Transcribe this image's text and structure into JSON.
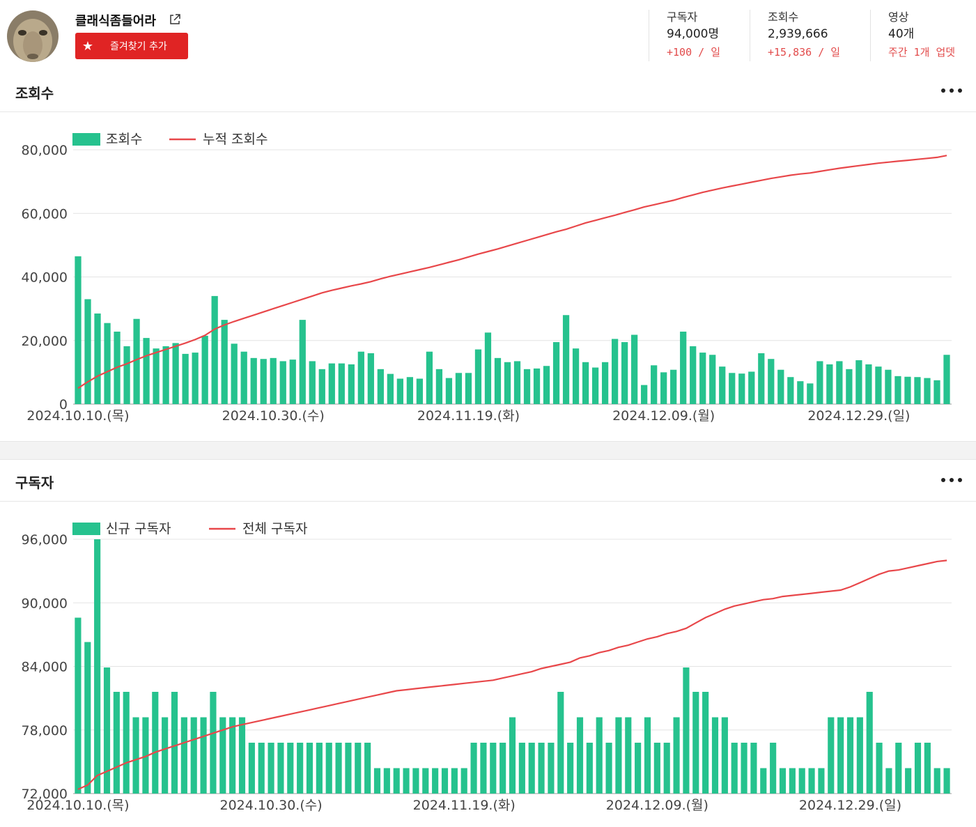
{
  "channel": {
    "name": "클래식좀들어라",
    "favorite_label": "즐겨찾기 추가"
  },
  "stats": [
    {
      "label": "구독자",
      "value": "94,000명",
      "delta": "+100 / 일"
    },
    {
      "label": "조회수",
      "value": "2,939,666",
      "delta": "+15,836 / 일"
    },
    {
      "label": "영상",
      "value": "40개",
      "delta": "주간 1개 업뎃"
    }
  ],
  "colors": {
    "bar": "#26c28e",
    "line": "#e8474a",
    "accent": "#e02424"
  },
  "icons": {
    "more": "more-dots-icon",
    "external": "external-link-icon",
    "star": "star-icon"
  },
  "sections": {
    "views": {
      "title": "조회수"
    },
    "subs": {
      "title": "구독자"
    }
  },
  "chart_data": [
    {
      "type": "bar",
      "legend": [
        "조회수",
        "누적 조회수"
      ],
      "y_ticks": [
        "0",
        "20,000",
        "40,000",
        "60,000",
        "80,000"
      ],
      "ylim": [
        0,
        80000
      ],
      "x_tick_labels": [
        "2024.10.10.(목)",
        "2024.10.30.(수)",
        "2024.11.19.(화)",
        "2024.12.09.(월)",
        "2024.12.29.(일)"
      ],
      "x_tick_index": [
        0,
        20,
        40,
        60,
        80
      ],
      "series": [
        {
          "name": "조회수",
          "type": "bar",
          "values": [
            46500,
            33000,
            28500,
            25500,
            22800,
            18200,
            26800,
            20800,
            17500,
            18200,
            19200,
            15800,
            16200,
            21500,
            34000,
            26500,
            19000,
            16500,
            14500,
            14200,
            14500,
            13500,
            14000,
            26500,
            13500,
            11000,
            12800,
            12800,
            12500,
            16500,
            16000,
            11000,
            9500,
            8000,
            8500,
            8000,
            16500,
            11000,
            8200,
            9800,
            9800,
            17200,
            22500,
            14500,
            13200,
            13500,
            11000,
            11200,
            12000,
            19500,
            28000,
            17500,
            13200,
            11500,
            13200,
            20500,
            19500,
            21800,
            6000,
            12200,
            10000,
            10800,
            22800,
            18200,
            16200,
            15500,
            11800,
            9800,
            9600,
            10200,
            16000,
            14200,
            10800,
            8500,
            7200,
            6500,
            13500,
            12500,
            13500,
            11000,
            13800,
            12500,
            11800,
            10800,
            8800,
            8600,
            8500,
            8200,
            7500,
            15500
          ]
        },
        {
          "name": "누적 조회수",
          "type": "line",
          "values": [
            5000,
            7000,
            8800,
            10200,
            11600,
            12700,
            14000,
            15200,
            16200,
            17200,
            18200,
            19200,
            20300,
            21600,
            23600,
            24900,
            26000,
            27000,
            28000,
            29000,
            30000,
            31000,
            32000,
            33000,
            34000,
            35000,
            35800,
            36500,
            37200,
            37800,
            38500,
            39400,
            40200,
            40900,
            41600,
            42300,
            43000,
            43800,
            44600,
            45400,
            46300,
            47200,
            48000,
            48800,
            49700,
            50600,
            51500,
            52400,
            53300,
            54200,
            55000,
            56000,
            57000,
            57800,
            58600,
            59400,
            60300,
            61100,
            62000,
            62700,
            63400,
            64100,
            65000,
            65800,
            66600,
            67300,
            68000,
            68600,
            69200,
            69800,
            70400,
            71000,
            71500,
            72000,
            72400,
            72700,
            73200,
            73700,
            74200,
            74600,
            75000,
            75400,
            75800,
            76100,
            76400,
            76700,
            77000,
            77300,
            77600,
            78200
          ]
        }
      ]
    },
    {
      "type": "bar",
      "legend": [
        "신규 구독자",
        "전체 구독자"
      ],
      "y_ticks": [
        "72,000",
        "78,000",
        "84,000",
        "90,000",
        "96,000"
      ],
      "ylim": [
        72000,
        96000
      ],
      "x_tick_labels": [
        "2024.10.10.(목)",
        "2024.10.30.(수)",
        "2024.11.19.(화)",
        "2024.12.09.(월)",
        "2024.12.29.(일)"
      ],
      "x_tick_index": [
        0,
        20,
        40,
        60,
        80
      ],
      "series": [
        {
          "name": "신규 구독자",
          "type": "bar",
          "values": [
            88600,
            86300,
            96000,
            83900,
            81600,
            81600,
            79200,
            79200,
            81600,
            79200,
            81600,
            79200,
            79200,
            79200,
            81600,
            79200,
            79200,
            79200,
            76800,
            76800,
            76800,
            76800,
            76800,
            76800,
            76800,
            76800,
            76800,
            76800,
            76800,
            76800,
            76800,
            74400,
            74400,
            74400,
            74400,
            74400,
            74400,
            74400,
            74400,
            74400,
            74400,
            76800,
            76800,
            76800,
            76800,
            79200,
            76800,
            76800,
            76800,
            76800,
            81600,
            76800,
            79200,
            76800,
            79200,
            76800,
            79200,
            79200,
            76800,
            79200,
            76800,
            76800,
            79200,
            83900,
            81600,
            81600,
            79200,
            79200,
            76800,
            76800,
            76800,
            74400,
            76800,
            74400,
            74400,
            74400,
            74400,
            74400,
            79200,
            79200,
            79200,
            79200,
            81600,
            76800,
            74400,
            76800,
            74400,
            76800,
            76800,
            74400,
            74400
          ]
        },
        {
          "name": "전체 구독자",
          "type": "line",
          "values": [
            72400,
            72800,
            73700,
            74100,
            74500,
            74900,
            75200,
            75500,
            75900,
            76200,
            76500,
            76800,
            77100,
            77400,
            77700,
            78000,
            78300,
            78500,
            78700,
            78900,
            79100,
            79300,
            79500,
            79700,
            79900,
            80100,
            80300,
            80500,
            80700,
            80900,
            81100,
            81300,
            81500,
            81700,
            81800,
            81900,
            82000,
            82100,
            82200,
            82300,
            82400,
            82500,
            82600,
            82700,
            82900,
            83100,
            83300,
            83500,
            83800,
            84000,
            84200,
            84400,
            84800,
            85000,
            85300,
            85500,
            85800,
            86000,
            86300,
            86600,
            86800,
            87100,
            87300,
            87600,
            88100,
            88600,
            89000,
            89400,
            89700,
            89900,
            90100,
            90300,
            90400,
            90600,
            90700,
            90800,
            90900,
            91000,
            91100,
            91200,
            91500,
            91900,
            92300,
            92700,
            93000,
            93100,
            93300,
            93500,
            93700,
            93900,
            94000
          ]
        }
      ]
    }
  ]
}
